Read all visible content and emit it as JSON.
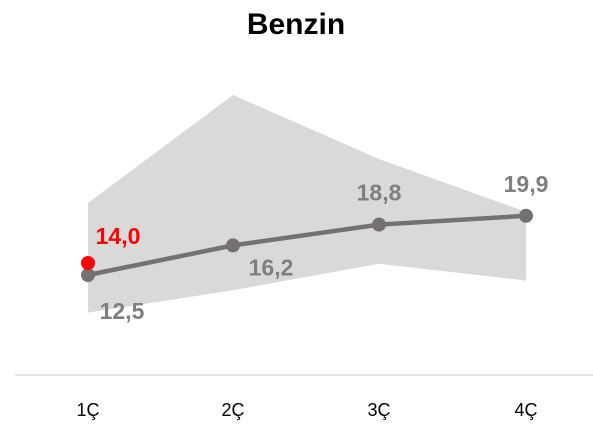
{
  "chart_data": {
    "type": "line",
    "title": "Benzin",
    "categories": [
      "1Ç",
      "2Ç",
      "3Ç",
      "4Ç"
    ],
    "band": {
      "upper": [
        21.5,
        35,
        27,
        20.4
      ],
      "lower": [
        7.8,
        10.6,
        13.9,
        11.8
      ],
      "color": "#d9d9d9"
    },
    "series": [
      {
        "color": "#767171",
        "label_color": "#7f7f7f",
        "values": [
          12.5,
          16.2,
          18.8,
          19.9
        ],
        "value_labels": [
          "12,5",
          "16,2",
          "18,8",
          "19,9"
        ]
      },
      {
        "color": "#ff0000",
        "label_color": "#ff0000",
        "values": [
          14.0,
          null,
          null,
          null
        ],
        "value_labels": [
          "14,0",
          null,
          null,
          null
        ]
      }
    ],
    "ylim": [
      0,
      40
    ]
  }
}
